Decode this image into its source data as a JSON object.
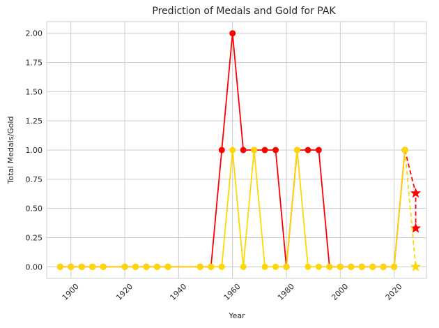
{
  "chart_data": {
    "type": "line",
    "title": "Prediction of Medals and Gold for PAK",
    "xlabel": "Year",
    "ylabel": "Total Medals/Gold",
    "xlim": [
      1891,
      2032
    ],
    "ylim": [
      -0.1,
      2.1
    ],
    "x_ticks": [
      1900,
      1920,
      1940,
      1960,
      1980,
      2000,
      2020
    ],
    "y_ticks": [
      "0.00",
      "0.25",
      "0.50",
      "0.75",
      "1.00",
      "1.25",
      "1.50",
      "1.75",
      "2.00"
    ],
    "grid": true,
    "series": [
      {
        "color": "#ff0000",
        "style": "solid",
        "marker": "circle",
        "x": [
          1896,
          1900,
          1904,
          1908,
          1912,
          1920,
          1924,
          1928,
          1932,
          1936,
          1948,
          1952,
          1956,
          1960,
          1964,
          1968,
          1972,
          1976,
          1980,
          1984,
          1988,
          1992,
          1996,
          2000,
          2004,
          2008,
          2012,
          2016,
          2020,
          2024
        ],
        "y": [
          0,
          0,
          0,
          0,
          0,
          0,
          0,
          0,
          0,
          0,
          0,
          0,
          1,
          2,
          1,
          1,
          1,
          1,
          0,
          1,
          1,
          1,
          0,
          0,
          0,
          0,
          0,
          0,
          0,
          1
        ]
      },
      {
        "color": "#ffd700",
        "style": "solid",
        "marker": "circle",
        "x": [
          1896,
          1900,
          1904,
          1908,
          1912,
          1920,
          1924,
          1928,
          1932,
          1936,
          1948,
          1952,
          1956,
          1960,
          1964,
          1968,
          1972,
          1976,
          1980,
          1984,
          1988,
          1992,
          1996,
          2000,
          2004,
          2008,
          2012,
          2016,
          2020,
          2024
        ],
        "y": [
          0,
          0,
          0,
          0,
          0,
          0,
          0,
          0,
          0,
          0,
          0,
          0,
          0,
          1,
          0,
          1,
          0,
          0,
          0,
          1,
          0,
          0,
          0,
          0,
          0,
          0,
          0,
          0,
          0,
          1
        ]
      },
      {
        "color": "#ff0000",
        "style": "dashed",
        "marker": "circle",
        "end_marker": "star",
        "x": [
          2024,
          2028,
          2028
        ],
        "y": [
          1,
          0.63,
          0.33
        ]
      },
      {
        "color": "#ffd700",
        "style": "dashed",
        "marker": "circle",
        "end_marker": "star",
        "x": [
          2024,
          2028
        ],
        "y": [
          1,
          0
        ]
      }
    ]
  }
}
